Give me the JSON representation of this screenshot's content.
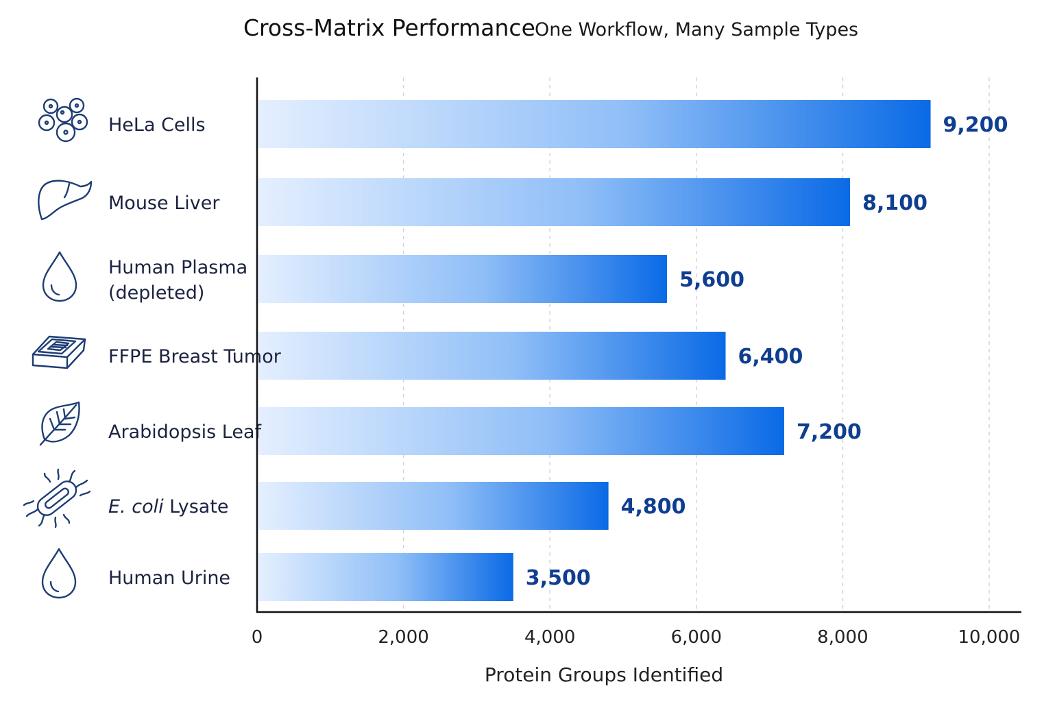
{
  "chart_data": {
    "type": "bar",
    "orientation": "horizontal",
    "title": "Cross-Matrix Performance",
    "subtitle": "One Workflow, Many Sample Types",
    "xlabel": "Protein Groups Identified",
    "ylabel": "",
    "xlim": [
      0,
      10000
    ],
    "xticks": [
      0,
      2000,
      4000,
      6000,
      8000,
      10000
    ],
    "xtick_labels": [
      "0",
      "2,000",
      "4,000",
      "6,000",
      "8,000",
      "10,000"
    ],
    "grid": "vertical dashed",
    "colors": {
      "bar_start": "#e4efff",
      "bar_end": "#0a6ae6",
      "value_label": "#0f3e91",
      "icon": "#1e3d74"
    },
    "categories": [
      {
        "label": "HeLa Cells",
        "label_lines": [
          "HeLa Cells"
        ],
        "value": 9200,
        "value_label": "9,200",
        "icon": "cells-icon"
      },
      {
        "label": "Mouse Liver",
        "label_lines": [
          "Mouse Liver"
        ],
        "value": 8100,
        "value_label": "8,100",
        "icon": "liver-icon"
      },
      {
        "label": "Human Plasma (depleted)",
        "label_lines": [
          "Human Plasma",
          "(depleted)"
        ],
        "value": 5600,
        "value_label": "5,600",
        "icon": "droplet-icon"
      },
      {
        "label": "FFPE Breast Tumor",
        "label_lines": [
          "FFPE Breast Tumor"
        ],
        "value": 6400,
        "value_label": "6,400",
        "icon": "tissue-cassette-icon"
      },
      {
        "label": "Arabidopsis Leaf",
        "label_lines": [
          "Arabidopsis Leaf"
        ],
        "value": 7200,
        "value_label": "7,200",
        "icon": "leaf-icon"
      },
      {
        "label": "E. coli Lysate",
        "label_lines": [
          "E. coli Lysate"
        ],
        "italic_prefix": "E. coli",
        "value": 4800,
        "value_label": "4,800",
        "icon": "bacterium-icon"
      },
      {
        "label": "Human Urine",
        "label_lines": [
          "Human Urine"
        ],
        "value": 3500,
        "value_label": "3,500",
        "icon": "droplet-icon"
      }
    ]
  }
}
